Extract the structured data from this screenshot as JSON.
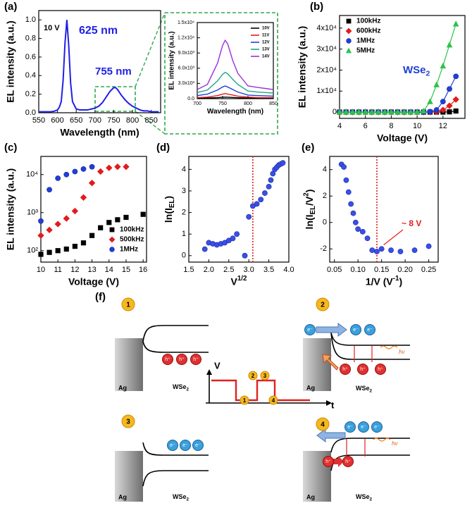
{
  "chart_data": [
    {
      "type": "line",
      "panel": "(a)",
      "x_label": "Wavelength (nm)",
      "y_label": "EL intensity (a.u.)",
      "annotations": [
        "10 V",
        "625 nm",
        "755 nm"
      ],
      "color": "#2020e6",
      "x": [
        550,
        560,
        570,
        580,
        590,
        600,
        605,
        610,
        615,
        620,
        625,
        630,
        635,
        640,
        650,
        660,
        670,
        680,
        690,
        700,
        710,
        720,
        730,
        740,
        750,
        755,
        760,
        770,
        780,
        790,
        800,
        810,
        820,
        830,
        840,
        850,
        860,
        870
      ],
      "values": [
        0.01,
        0.01,
        0.01,
        0.01,
        0.015,
        0.03,
        0.06,
        0.12,
        0.35,
        0.75,
        1.0,
        0.72,
        0.32,
        0.12,
        0.04,
        0.03,
        0.03,
        0.03,
        0.04,
        0.05,
        0.07,
        0.11,
        0.17,
        0.23,
        0.27,
        0.27,
        0.25,
        0.19,
        0.14,
        0.1,
        0.07,
        0.05,
        0.03,
        0.02,
        0.02,
        0.01,
        0.01,
        0.01
      ],
      "xlim": [
        550,
        875
      ],
      "xticks": [
        550,
        600,
        650,
        700,
        750,
        800,
        850
      ],
      "ylim": [
        0,
        1.1
      ],
      "yticks": [
        {
          "value": 0,
          "label": "0.0"
        },
        0.2,
        0.4,
        0.6,
        0.8,
        {
          "value": 1,
          "label": "1.0"
        }
      ]
    },
    {
      "type": "line",
      "x_label": "Wavelength (nm)",
      "y_label": "EL intensity (a.u.)",
      "legend": "upper right",
      "x": [
        700,
        720,
        740,
        750,
        755,
        760,
        770,
        780,
        800,
        820,
        850
      ],
      "series": [
        {
          "name": "10V",
          "color": "#000000",
          "values": [
            100,
            120,
            200,
            280,
            300,
            280,
            230,
            180,
            120,
            100,
            100
          ]
        },
        {
          "name": "11V",
          "color": "#e41a1c",
          "values": [
            200,
            300,
            600,
            900,
            1000,
            900,
            700,
            500,
            300,
            200,
            200
          ]
        },
        {
          "name": "12V",
          "color": "#1f3fd6",
          "values": [
            600,
            900,
            1700,
            2300,
            2500,
            2300,
            1800,
            1300,
            700,
            600,
            500
          ]
        },
        {
          "name": "13V",
          "color": "#21a58a",
          "values": [
            1200,
            1700,
            3500,
            4800,
            5200,
            4900,
            3800,
            2800,
            1500,
            1300,
            1100
          ]
        },
        {
          "name": "14V",
          "color": "#9b30d9",
          "values": [
            1800,
            2800,
            7000,
            10500,
            11500,
            10800,
            7500,
            5000,
            2500,
            2200,
            1800
          ]
        }
      ],
      "xlim": [
        700,
        850
      ],
      "xticks": [
        700,
        750,
        800,
        850
      ],
      "ylim": [
        0,
        15000
      ],
      "yticks": [
        {
          "value": 0,
          "label": "0.0"
        },
        {
          "value": 3000,
          "label": "3.0x10³"
        },
        {
          "value": 6000,
          "label": "6.0x10³"
        },
        {
          "value": 9000,
          "label": "9.0x10³"
        },
        {
          "value": 12000,
          "label": "1.2x10⁴"
        },
        {
          "value": 15000,
          "label": "1.5x10⁴"
        }
      ]
    },
    {
      "type": "scatter",
      "panel": "(b)",
      "connect": true,
      "legend": "upper left",
      "x_label": "Voltage (V)",
      "y_label": "EL intensity (a.u.)",
      "annotations": [
        [
          {
            "text": "WSe",
            "style": "normal"
          },
          {
            "text": "2",
            "style": "sub"
          }
        ]
      ],
      "series": [
        {
          "name": "100kHz",
          "color": "#000000",
          "marker": "square",
          "x": [
            4,
            4.5,
            5,
            5.5,
            6,
            6.5,
            7,
            7.5,
            8,
            8.5,
            9,
            9.5,
            10,
            10.5,
            11,
            11.5,
            12,
            12.5,
            13
          ],
          "values": [
            0,
            0,
            0,
            0,
            0,
            0,
            0,
            0,
            0,
            0,
            0,
            0,
            0,
            0,
            0,
            0,
            0,
            100,
            500
          ]
        },
        {
          "name": "600kHz",
          "color": "#e41a1c",
          "marker": "diamond",
          "x": [
            4,
            4.5,
            5,
            5.5,
            6,
            6.5,
            7,
            7.5,
            8,
            8.5,
            9,
            9.5,
            10,
            10.5,
            11,
            11.5,
            12,
            12.5,
            13
          ],
          "values": [
            0,
            0,
            0,
            0,
            0,
            0,
            0,
            0,
            0,
            0,
            0,
            0,
            0,
            0,
            0,
            200,
            1000,
            3000,
            6000
          ]
        },
        {
          "name": "1MHz",
          "color": "#1f3fd6",
          "marker": "circle",
          "x": [
            4,
            4.5,
            5,
            5.5,
            6,
            6.5,
            7,
            7.5,
            8,
            8.5,
            9,
            9.5,
            10,
            10.5,
            11,
            11.5,
            12,
            12.5,
            13
          ],
          "values": [
            0,
            0,
            0,
            0,
            0,
            0,
            0,
            0,
            0,
            0,
            0,
            0,
            0,
            0,
            200,
            1000,
            5000,
            11000,
            17000
          ]
        },
        {
          "name": "5MHz",
          "color": "#2fc24a",
          "marker": "triangle",
          "x": [
            4,
            4.5,
            5,
            5.5,
            6,
            6.5,
            7,
            7.5,
            8,
            8.5,
            9,
            9.5,
            10,
            10.5,
            11,
            11.5,
            12,
            12.5,
            13
          ],
          "values": [
            0,
            0,
            0,
            0,
            0,
            0,
            0,
            0,
            0,
            0,
            0,
            0,
            0,
            500,
            5000,
            13000,
            22000,
            32000,
            42000
          ]
        }
      ],
      "xlim": [
        4,
        13.7
      ],
      "xticks": [
        4,
        6,
        8,
        10,
        12
      ],
      "ylim": [
        -3000,
        46000
      ],
      "yticks": [
        0,
        {
          "value": 10000,
          "label": "1x10⁴"
        },
        {
          "value": 20000,
          "label": "2x10⁴"
        },
        {
          "value": 30000,
          "label": "3x10⁴"
        },
        {
          "value": 40000,
          "label": "4x10⁴"
        }
      ]
    },
    {
      "type": "scatter",
      "panel": "(c)",
      "legend": "lower right",
      "log_y": true,
      "x_label": "Voltage (V)",
      "y_label": "EL intensity (a.u.)",
      "series": [
        {
          "name": "100kHz",
          "color": "#000000",
          "marker": "square",
          "x": [
            10,
            10.5,
            11,
            11.5,
            12,
            12.5,
            13,
            13.5,
            14,
            14.5,
            15,
            16
          ],
          "values": [
            80,
            90,
            100,
            110,
            130,
            160,
            250,
            400,
            550,
            650,
            750,
            900
          ]
        },
        {
          "name": "500kHz",
          "color": "#e41a1c",
          "marker": "diamond",
          "x": [
            10,
            10.5,
            11,
            11.5,
            12,
            12.5,
            13,
            13.5,
            14,
            14.5,
            15
          ],
          "values": [
            250,
            350,
            500,
            700,
            1100,
            2500,
            6000,
            12000,
            15000,
            16000,
            16000
          ]
        },
        {
          "name": "1MHz",
          "color": "#1f3fd6",
          "marker": "circle",
          "x": [
            10,
            10.5,
            11,
            11.5,
            12,
            12.5,
            13
          ],
          "values": [
            600,
            4000,
            8000,
            10000,
            12000,
            14000,
            16000
          ]
        }
      ],
      "xlim": [
        10,
        16.2
      ],
      "xticks": [
        10,
        11,
        12,
        13,
        14,
        15,
        16
      ],
      "ylim": [
        50,
        30000
      ],
      "yticks": [
        {
          "value": 100,
          "label": "10²"
        },
        {
          "value": 1000,
          "label": "10³"
        },
        {
          "value": 10000,
          "label": "10⁴"
        }
      ]
    },
    {
      "type": "scatter",
      "panel": "(d)",
      "color": "#3a4ee8",
      "marker": "circle",
      "ref_line": 3.1,
      "x_label": [
        {
          "text": "V",
          "style": "normal"
        },
        {
          "text": "1/2",
          "style": "sup"
        }
      ],
      "y_label": [
        {
          "text": "ln(I",
          "style": "normal"
        },
        {
          "text": "EL",
          "style": "sub"
        },
        {
          "text": ")",
          "style": "normal"
        }
      ],
      "x": [
        1.9,
        2.0,
        2.1,
        2.2,
        2.3,
        2.4,
        2.5,
        2.6,
        2.7,
        2.9,
        3.0,
        3.1,
        3.2,
        3.3,
        3.4,
        3.5,
        3.55,
        3.6,
        3.65,
        3.7,
        3.75,
        3.8,
        3.85
      ],
      "values": [
        0.3,
        0.6,
        0.55,
        0.5,
        0.55,
        0.6,
        0.7,
        0.8,
        1.0,
        0,
        1.8,
        2.3,
        2.4,
        2.6,
        2.9,
        3.2,
        3.5,
        3.8,
        4.0,
        4.1,
        4.2,
        4.25,
        4.3
      ],
      "xlim": [
        1.5,
        4.0
      ],
      "xticks": [
        1.5,
        {
          "value": 2,
          "label": "2.0"
        },
        2.5,
        {
          "value": 3,
          "label": "3.0"
        },
        3.5,
        {
          "value": 4,
          "label": "4.0"
        }
      ],
      "ylim": [
        -0.3,
        4.6
      ],
      "yticks": [
        0,
        1,
        2,
        3,
        4
      ]
    },
    {
      "type": "scatter",
      "panel": "(e)",
      "color": "#3a4ee8",
      "marker": "circle",
      "ref_line": 0.14,
      "annotations": [
        "~ 8 V"
      ],
      "x_label": [
        {
          "text": "1/V (V",
          "style": "normal"
        },
        {
          "text": "-1",
          "style": "sup"
        },
        {
          "text": ")",
          "style": "normal"
        }
      ],
      "y_label": [
        {
          "text": "ln(I",
          "style": "normal"
        },
        {
          "text": "EL",
          "style": "sub"
        },
        {
          "text": "/V",
          "style": "normal"
        },
        {
          "text": "2",
          "style": "sup"
        },
        {
          "text": ")",
          "style": "normal"
        }
      ],
      "x": [
        0.065,
        0.07,
        0.075,
        0.08,
        0.085,
        0.09,
        0.095,
        0.1,
        0.11,
        0.12,
        0.13,
        0.14,
        0.15,
        0.17,
        0.19,
        0.22,
        0.25
      ],
      "values": [
        4.4,
        4.2,
        3.2,
        2.3,
        1.4,
        0.7,
        0,
        -0.5,
        -0.7,
        -1.2,
        -2.1,
        -2.2,
        -2.0,
        -2.1,
        -2.2,
        -2.1,
        -1.8
      ],
      "xlim": [
        0.04,
        0.27
      ],
      "xticks": [
        0.05,
        {
          "value": 0.1,
          "label": "0.10"
        },
        0.15,
        {
          "value": 0.2,
          "label": "0.20"
        },
        0.25
      ],
      "ylim": [
        -3,
        5
      ],
      "yticks": [
        -2,
        0,
        2,
        4
      ]
    }
  ],
  "diagram": {
    "panel": "(f)",
    "steps": [
      "1",
      "2",
      "3",
      "4"
    ],
    "metal": "Ag",
    "semiconductor": [
      {
        "text": "WSe",
        "style": "normal"
      },
      {
        "text": "2",
        "style": "sub"
      }
    ],
    "v_axis": "V",
    "t_axis": "t",
    "electron": "e⁻",
    "hole": "h⁺",
    "photon": "hν"
  }
}
